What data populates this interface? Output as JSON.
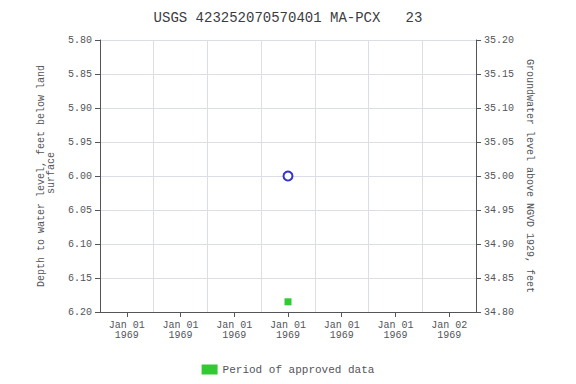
{
  "chart_data": {
    "type": "scatter",
    "title": "USGS 423252070570401 MA-PCX   23",
    "categories": [
      "Jan 01\n1969",
      "Jan 01\n1969",
      "Jan 01\n1969",
      "Jan 01\n1969",
      "Jan 01\n1969",
      "Jan 01\n1969",
      "Jan 02\n1969"
    ],
    "ylabel": "Depth to water level, feet below land\n surface",
    "y2label": "Groundwater level above NGVD 1929, feet",
    "ylim": [
      6.2,
      5.8
    ],
    "yticks": [
      {
        "value": 5.8,
        "label": "5.80"
      },
      5.85,
      {
        "value": 5.9,
        "label": "5.90"
      },
      5.95,
      {
        "value": 6.0,
        "label": "6.00"
      },
      6.05,
      {
        "value": 6.1,
        "label": "6.10"
      },
      6.15,
      {
        "value": 6.2,
        "label": "6.20"
      }
    ],
    "y2lim": [
      34.8,
      35.2
    ],
    "y2ticks": [
      {
        "value": 34.8,
        "label": "34.80"
      },
      34.85,
      {
        "value": 34.9,
        "label": "34.90"
      },
      34.95,
      {
        "value": 35.0,
        "label": "35.00"
      },
      35.05,
      {
        "value": 35.1,
        "label": "35.10"
      },
      35.15,
      {
        "value": 35.2,
        "label": "35.20"
      }
    ],
    "grid": true,
    "legend": "bottom",
    "series": [
      {
        "values": [
          null,
          null,
          null,
          6.0,
          null,
          null,
          null
        ],
        "color": "#0000cc",
        "marker": "open_circle"
      },
      {
        "name": "Period of approved data",
        "values": [
          null,
          null,
          null,
          6.185,
          null,
          null,
          null
        ],
        "color": "#00bb00",
        "marker": "square"
      }
    ]
  }
}
